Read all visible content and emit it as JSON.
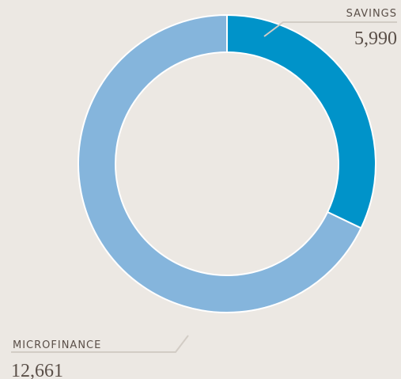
{
  "chart_data": {
    "type": "donut",
    "categories": [
      "SAVINGS",
      "MICROFINANCE"
    ],
    "values": [
      5990,
      12661
    ],
    "value_labels": [
      "5,990",
      "12,661"
    ],
    "colors": [
      "#0093c9",
      "#85b5dc"
    ]
  }
}
